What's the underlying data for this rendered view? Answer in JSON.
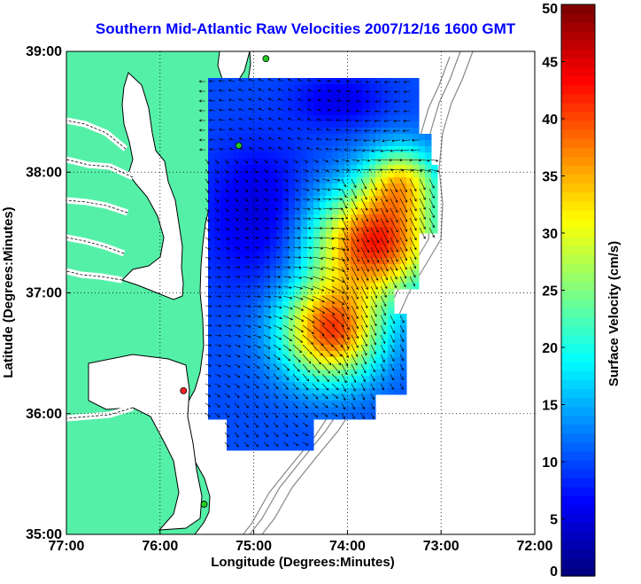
{
  "chart_data": {
    "type": "heatmap",
    "title": "Southern Mid-Atlantic Raw Velocities 2007/12/16 1600 GMT",
    "xlabel": "Longitude (Degrees:Minutes)",
    "ylabel": "Latitude (Degrees:Minutes)",
    "xlim": [
      -77,
      -72
    ],
    "ylim": [
      35,
      39
    ],
    "xticks": [
      "77:00",
      "76:00",
      "75:00",
      "74:00",
      "73:00",
      "72:00"
    ],
    "yticks": [
      "35:00",
      "36:00",
      "37:00",
      "38:00",
      "39:00"
    ],
    "grid": true,
    "colorbar": {
      "label": "Surface Velocity (cm/s)",
      "min": 0,
      "max": 50,
      "ticks": [
        "0",
        "5",
        "10",
        "15",
        "20",
        "25",
        "30",
        "35",
        "40",
        "45",
        "50"
      ]
    },
    "stations": [
      {
        "lon": -74.87,
        "lat": 38.94,
        "color": "#22cc22"
      },
      {
        "lon": -75.16,
        "lat": 38.22,
        "color": "#22cc22"
      },
      {
        "lon": -75.75,
        "lat": 36.19,
        "color": "#ff2222"
      },
      {
        "lon": -75.53,
        "lat": 35.25,
        "color": "#22cc22"
      }
    ]
  },
  "colors": {
    "land": "#55f0a8",
    "water": "#ffffff",
    "coast": "#000000",
    "bathymetry": "#888888",
    "grid": "#000000",
    "title": "#0000ff"
  }
}
